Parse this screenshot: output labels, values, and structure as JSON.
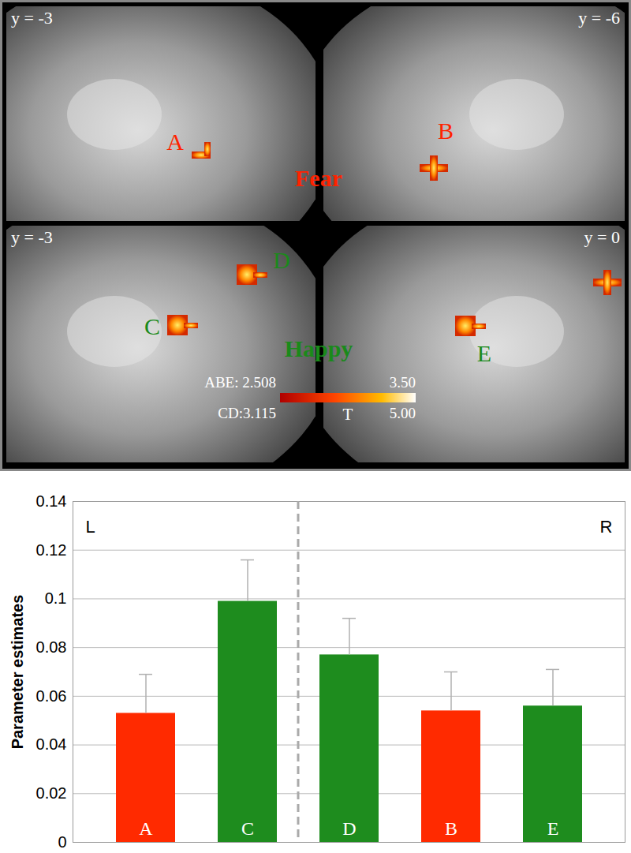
{
  "chart_data": {
    "type": "bar",
    "categories": [
      "A",
      "C",
      "D",
      "B",
      "E"
    ],
    "values": [
      0.053,
      0.099,
      0.077,
      0.054,
      0.056
    ],
    "errors": [
      0.016,
      0.017,
      0.015,
      0.016,
      0.015
    ],
    "colors": [
      "#ff2a00",
      "#1e8c1e",
      "#1e8c1e",
      "#ff2a00",
      "#1e8c1e"
    ],
    "hemispheres": [
      "L",
      "L",
      "R",
      "R",
      "R"
    ],
    "y_label": "Parameter estimates",
    "ylim": [
      0,
      0.14
    ],
    "yticks": [
      0,
      0.02,
      0.04,
      0.06,
      0.08,
      0.1,
      0.12,
      0.14
    ],
    "grid": true
  },
  "brain_panel": {
    "conditions": [
      {
        "name": "Fear",
        "color": "#ff2200"
      },
      {
        "name": "Happy",
        "color": "#1a8a1a"
      }
    ],
    "slices": [
      {
        "slice": "y = -3",
        "condition": "Fear",
        "regions": [
          "A"
        ]
      },
      {
        "slice": "y = -6",
        "condition": "Fear",
        "regions": [
          "B"
        ]
      },
      {
        "slice": "y = -3",
        "condition": "Happy",
        "regions": [
          "C",
          "D"
        ]
      },
      {
        "slice": "y = 0",
        "condition": "Happy",
        "regions": [
          "E",
          null
        ]
      }
    ],
    "colorbar": {
      "title": "T",
      "scales": [
        {
          "prefix": "ABE: ",
          "min": 2.508,
          "max": {
            "value": 3.5,
            "label": "3.50"
          }
        },
        {
          "prefix": "CD:",
          "min": 3.115,
          "max": {
            "value": 5,
            "label": "5.00"
          }
        }
      ]
    }
  }
}
